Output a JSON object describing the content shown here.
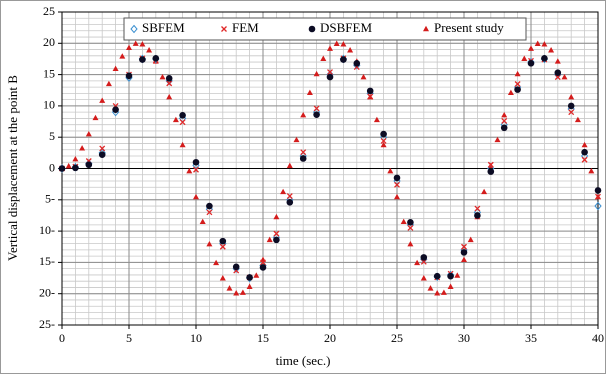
{
  "chart_data": {
    "type": "scatter",
    "x_label": "time (sec.)",
    "y_label": "Vertical displacement at the point B",
    "xlim": [
      0,
      40
    ],
    "xticks": [
      0,
      5,
      10,
      15,
      20,
      25,
      30,
      35,
      40
    ],
    "ylim": [
      -25,
      25
    ],
    "yticks": [
      {
        "value": -25,
        "label": "25-"
      },
      {
        "value": -20,
        "label": "20-"
      },
      {
        "value": -15,
        "label": "15-"
      },
      {
        "value": -10,
        "label": "10-"
      },
      {
        "value": -5,
        "label": "5-"
      },
      0,
      5,
      10,
      15,
      20,
      25
    ],
    "grid": true,
    "minor_grid_step": 1,
    "legend": "top",
    "series": [
      {
        "name": "SBFEM",
        "color": "#3a8fd0",
        "marker": "diamond",
        "x": [
          0,
          1,
          2,
          3,
          4,
          5,
          6,
          7,
          8,
          9,
          10,
          11,
          12,
          13,
          14,
          15,
          16,
          17,
          18,
          19,
          20,
          21,
          22,
          23,
          24,
          25,
          26,
          27,
          28,
          29,
          30,
          31,
          32,
          33,
          34,
          35,
          36,
          37,
          38,
          39,
          40
        ],
        "values": [
          0,
          0.2,
          0.8,
          2.5,
          9,
          14.5,
          17.5,
          17.5,
          14,
          8,
          0.5,
          -6.5,
          -12,
          -16,
          -17.5,
          -15.5,
          -11,
          -5,
          2,
          9,
          15,
          17.5,
          16.5,
          12,
          5,
          -2,
          -9,
          -14.5,
          -17.3,
          -17,
          -13,
          -7,
          0,
          7,
          13,
          17,
          17.5,
          15,
          9.5,
          2,
          -6
        ]
      },
      {
        "name": "FEM",
        "color": "#e02828",
        "marker": "x",
        "x": [
          0,
          1,
          2,
          3,
          4,
          5,
          6,
          7,
          8,
          9,
          10,
          11,
          12,
          13,
          14,
          15,
          16,
          17,
          18,
          19,
          20,
          21,
          22,
          23,
          24,
          25,
          26,
          27,
          28,
          29,
          30,
          31,
          32,
          33,
          34,
          35,
          36,
          37,
          38,
          39,
          40
        ],
        "values": [
          0,
          0.3,
          1.2,
          3.2,
          10,
          15,
          17.6,
          17.3,
          13.6,
          7.4,
          -0.2,
          -7,
          -12.5,
          -16.3,
          -17.4,
          -15,
          -10.4,
          -4.4,
          2.6,
          9.6,
          15.4,
          17.6,
          16.2,
          11.5,
          4.4,
          -2.6,
          -9.5,
          -14.9,
          -17.4,
          -16.8,
          -12.5,
          -6.4,
          0.6,
          7.6,
          13.5,
          17.2,
          17.4,
          14.6,
          9,
          1.4,
          -4.5
        ]
      },
      {
        "name": "DSBFEM",
        "color": "#0c0c24",
        "marker": "circle",
        "x": [
          0,
          1,
          2,
          3,
          4,
          5,
          6,
          7,
          8,
          9,
          10,
          11,
          12,
          13,
          14,
          15,
          16,
          17,
          18,
          19,
          20,
          21,
          22,
          23,
          24,
          25,
          26,
          27,
          28,
          29,
          30,
          31,
          32,
          33,
          34,
          35,
          36,
          37,
          38,
          39,
          40
        ],
        "values": [
          0,
          0.1,
          0.6,
          2.2,
          9.4,
          14.8,
          17.4,
          17.6,
          14.4,
          8.5,
          1,
          -6,
          -11.6,
          -15.7,
          -17.4,
          -15.8,
          -11.4,
          -5.4,
          1.6,
          8.6,
          14.6,
          17.4,
          16.8,
          12.4,
          5.5,
          -1.5,
          -8.6,
          -14.2,
          -17.2,
          -17.2,
          -13.4,
          -7.5,
          -0.5,
          6.5,
          12.6,
          16.8,
          17.6,
          15.3,
          10,
          2.6,
          -3.5
        ]
      },
      {
        "name": "Present study",
        "color": "#d41c1c",
        "marker": "triangle",
        "x": [
          0,
          0.5,
          1,
          1.5,
          2,
          2.5,
          3,
          3.5,
          4,
          4.5,
          5,
          5.5,
          6,
          6.5,
          7,
          7.5,
          8,
          8.5,
          9,
          9.5,
          10,
          10.5,
          11,
          11.5,
          12,
          12.5,
          13,
          13.5,
          14,
          14.5,
          15,
          15.5,
          16,
          16.5,
          17,
          17.5,
          18,
          18.5,
          19,
          19.5,
          20,
          20.5,
          21,
          21.5,
          22,
          22.5,
          23,
          23.5,
          24,
          24.5,
          25,
          25.5,
          26,
          26.5,
          27,
          27.5,
          28,
          28.5,
          29,
          29.5,
          30,
          30.5,
          31,
          31.5,
          32,
          32.5,
          33,
          33.5,
          34,
          34.5,
          35,
          35.5,
          36,
          36.5,
          37,
          37.5,
          38,
          38.5,
          39,
          39.5,
          40
        ],
        "values": [
          0,
          0.38,
          1.48,
          3.23,
          5.48,
          8.08,
          10.83,
          13.51,
          15.93,
          17.9,
          19.28,
          19.94,
          19.84,
          18.89,
          17.11,
          14.58,
          11.4,
          7.75,
          3.75,
          -0.42,
          -4.57,
          -8.52,
          -12.09,
          -15.09,
          -17.53,
          -19.15,
          -19.93,
          -19.84,
          -18.89,
          -17.11,
          -14.58,
          -11.4,
          -7.75,
          -3.75,
          0.42,
          4.57,
          8.52,
          12.09,
          15.09,
          17.53,
          19.15,
          19.93,
          19.84,
          18.89,
          17.11,
          14.58,
          11.4,
          7.75,
          3.75,
          -0.42,
          -4.57,
          -8.52,
          -12.09,
          -15.09,
          -17.53,
          -19.15,
          -19.93,
          -19.84,
          -18.89,
          -17.11,
          -14.58,
          -11.4,
          -7.75,
          -3.75,
          0.42,
          4.57,
          8.52,
          12.09,
          15.09,
          17.53,
          19.15,
          19.93,
          19.84,
          18.89,
          17.11,
          14.58,
          11.4,
          7.75,
          3.75,
          -0.42,
          -4.57
        ]
      }
    ]
  }
}
